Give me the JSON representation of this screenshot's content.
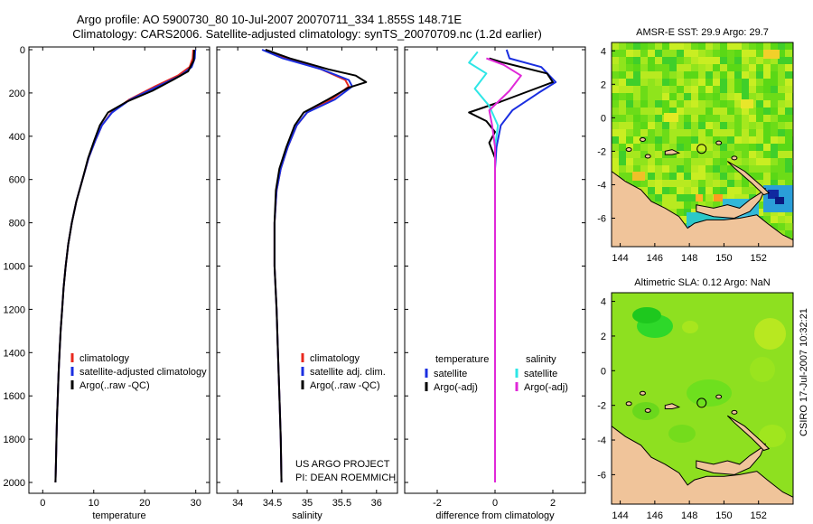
{
  "header": {
    "line1": "Argo profile: AO 5900730_80 10-Jul-2007 20070711_334 1.855S 148.71E",
    "line2": "Climatology: CARS2006. Satellite-adjusted climatology: synTS_20070709.nc (1.2d earlier)"
  },
  "side_stamp": "CSIRO 17-Jul-2007 10:32:21",
  "colors": {
    "clim": "#e8281e",
    "sat": "#1a2ee0",
    "argo": "#000000",
    "sat_diff": "#2ee6e6",
    "argo_diff": "#e028d8"
  },
  "chart_data": [
    {
      "type": "line",
      "xlabel": "temperature",
      "ylabel": "",
      "xlim": [
        -2,
        32
      ],
      "ylim": [
        2000,
        0
      ],
      "x_ticks": [
        "0",
        "10",
        "20",
        "30"
      ],
      "y_ticks": [
        "0",
        "200",
        "400",
        "600",
        "800",
        "1000",
        "1200",
        "1400",
        "1600",
        "1800",
        "2000"
      ],
      "legend": [
        "climatology",
        "satellite-adjusted climatology",
        "Argo(..raw -QC)"
      ],
      "series": [
        {
          "name": "climatology",
          "color": "#e8281e",
          "points": [
            [
              29.5,
              0
            ],
            [
              29.4,
              40
            ],
            [
              28.8,
              80
            ],
            [
              26.5,
              120
            ],
            [
              22,
              170
            ],
            [
              17,
              230
            ],
            [
              13.5,
              290
            ],
            [
              11.6,
              350
            ],
            [
              10.3,
              420
            ],
            [
              9,
              500
            ],
            [
              7.8,
              600
            ],
            [
              6.6,
              700
            ],
            [
              5.7,
              800
            ],
            [
              5,
              900
            ],
            [
              4.5,
              1000
            ],
            [
              4.1,
              1100
            ],
            [
              3.8,
              1200
            ],
            [
              3.5,
              1300
            ],
            [
              3.3,
              1400
            ],
            [
              3.1,
              1500
            ],
            [
              2.95,
              1600
            ],
            [
              2.8,
              1700
            ],
            [
              2.7,
              1800
            ],
            [
              2.6,
              1900
            ],
            [
              2.5,
              2000
            ]
          ]
        },
        {
          "name": "satellite-adjusted climatology",
          "color": "#1a2ee0",
          "points": [
            [
              29.9,
              0
            ],
            [
              29.8,
              40
            ],
            [
              29.2,
              80
            ],
            [
              27,
              120
            ],
            [
              22.5,
              170
            ],
            [
              17.2,
              230
            ],
            [
              13.6,
              290
            ],
            [
              11.6,
              350
            ],
            [
              10.3,
              420
            ],
            [
              9,
              500
            ],
            [
              7.8,
              600
            ],
            [
              6.6,
              700
            ],
            [
              5.7,
              800
            ],
            [
              5,
              900
            ],
            [
              4.5,
              1000
            ],
            [
              4.1,
              1100
            ],
            [
              3.8,
              1200
            ],
            [
              3.5,
              1300
            ],
            [
              3.3,
              1400
            ],
            [
              3.1,
              1500
            ],
            [
              2.95,
              1600
            ],
            [
              2.8,
              1700
            ],
            [
              2.7,
              1800
            ],
            [
              2.6,
              1900
            ],
            [
              2.5,
              2000
            ]
          ]
        },
        {
          "name": "Argo(..raw -QC)",
          "color": "#000000",
          "points": [
            [
              29.7,
              0
            ],
            [
              29.6,
              50
            ],
            [
              28.5,
              100
            ],
            [
              25.5,
              140
            ],
            [
              21.5,
              190
            ],
            [
              16.5,
              240
            ],
            [
              12.8,
              290
            ],
            [
              11.2,
              350
            ],
            [
              10.1,
              420
            ],
            [
              8.9,
              500
            ],
            [
              7.8,
              600
            ],
            [
              6.6,
              700
            ],
            [
              5.7,
              800
            ],
            [
              5,
              900
            ],
            [
              4.5,
              1000
            ],
            [
              4.1,
              1100
            ],
            [
              3.8,
              1200
            ],
            [
              3.5,
              1300
            ],
            [
              3.3,
              1400
            ],
            [
              3.1,
              1500
            ],
            [
              2.95,
              1600
            ],
            [
              2.8,
              1700
            ],
            [
              2.7,
              1800
            ],
            [
              2.6,
              1900
            ],
            [
              2.5,
              2000
            ]
          ]
        }
      ]
    },
    {
      "type": "line",
      "xlabel": "salinity",
      "xlim": [
        33.75,
        36.25
      ],
      "ylim": [
        2000,
        0
      ],
      "x_ticks": [
        "34",
        "34.5",
        "35",
        "35.5",
        "36"
      ],
      "legend": [
        "climatology",
        "satellite adj. clim.",
        "Argo(..raw -QC)"
      ],
      "annotation": [
        "US ARGO PROJECT",
        "PI: DEAN ROEMMICH"
      ],
      "series": [
        {
          "name": "climatology",
          "color": "#e8281e",
          "points": [
            [
              34.4,
              0
            ],
            [
              34.7,
              40
            ],
            [
              35.2,
              90
            ],
            [
              35.55,
              140
            ],
            [
              35.6,
              170
            ],
            [
              35.35,
              230
            ],
            [
              35.0,
              290
            ],
            [
              34.85,
              350
            ],
            [
              34.72,
              450
            ],
            [
              34.62,
              550
            ],
            [
              34.56,
              650
            ],
            [
              34.53,
              800
            ],
            [
              34.53,
              1000
            ],
            [
              34.56,
              1200
            ],
            [
              34.58,
              1400
            ],
            [
              34.6,
              1600
            ],
            [
              34.62,
              1800
            ],
            [
              34.63,
              2000
            ]
          ]
        },
        {
          "name": "satellite adj. clim.",
          "color": "#1a2ee0",
          "points": [
            [
              34.35,
              0
            ],
            [
              34.65,
              40
            ],
            [
              35.2,
              90
            ],
            [
              35.6,
              140
            ],
            [
              35.65,
              170
            ],
            [
              35.4,
              230
            ],
            [
              35.0,
              290
            ],
            [
              34.85,
              350
            ],
            [
              34.72,
              450
            ],
            [
              34.62,
              550
            ],
            [
              34.56,
              650
            ],
            [
              34.53,
              800
            ],
            [
              34.53,
              1000
            ],
            [
              34.56,
              1200
            ],
            [
              34.58,
              1400
            ],
            [
              34.6,
              1600
            ],
            [
              34.62,
              1800
            ],
            [
              34.63,
              2000
            ]
          ]
        },
        {
          "name": "Argo(..raw -QC)",
          "color": "#000000",
          "points": [
            [
              34.4,
              0
            ],
            [
              34.75,
              40
            ],
            [
              35.3,
              90
            ],
            [
              35.7,
              120
            ],
            [
              35.85,
              150
            ],
            [
              35.6,
              175
            ],
            [
              35.3,
              230
            ],
            [
              34.95,
              290
            ],
            [
              34.82,
              350
            ],
            [
              34.7,
              450
            ],
            [
              34.6,
              550
            ],
            [
              34.55,
              650
            ],
            [
              34.53,
              800
            ],
            [
              34.53,
              1000
            ],
            [
              34.56,
              1200
            ],
            [
              34.58,
              1400
            ],
            [
              34.6,
              1600
            ],
            [
              34.62,
              1800
            ],
            [
              34.63,
              2000
            ]
          ]
        }
      ]
    },
    {
      "type": "line",
      "xlabel": "difference from climatology",
      "xlim": [
        -3,
        3
      ],
      "ylim": [
        2000,
        0
      ],
      "x_ticks": [
        "-2",
        "0",
        "2"
      ],
      "legend_groups": [
        {
          "title": "temperature",
          "entries": [
            "satellite",
            "Argo(-adj)"
          ]
        },
        {
          "title": "salinity",
          "entries": [
            "satellite",
            "Argo(-adj)"
          ]
        }
      ],
      "series": [
        {
          "name": "satellite",
          "group": "temperature",
          "color": "#1a2ee0",
          "points": [
            [
              0.4,
              0
            ],
            [
              0.5,
              40
            ],
            [
              1.6,
              80
            ],
            [
              2.1,
              150
            ],
            [
              1.5,
              200
            ],
            [
              0.6,
              280
            ],
            [
              0.2,
              350
            ],
            [
              0.05,
              450
            ],
            [
              0,
              550
            ],
            [
              0,
              700
            ],
            [
              0,
              2000
            ]
          ]
        },
        {
          "name": "Argo(-adj)",
          "group": "temperature",
          "color": "#000000",
          "points": [
            [
              -0.2,
              40
            ],
            [
              0.3,
              60
            ],
            [
              1.8,
              110
            ],
            [
              2.0,
              150
            ],
            [
              1.2,
              190
            ],
            [
              0.2,
              240
            ],
            [
              -0.9,
              290
            ],
            [
              -0.3,
              330
            ],
            [
              0.0,
              380
            ],
            [
              -0.2,
              430
            ],
            [
              0.0,
              500
            ],
            [
              0,
              2000
            ]
          ]
        },
        {
          "name": "satellite",
          "group": "salinity",
          "color": "#2ee6e6",
          "points": [
            [
              -0.6,
              10
            ],
            [
              -0.9,
              60
            ],
            [
              -0.3,
              110
            ],
            [
              -0.7,
              180
            ],
            [
              -0.2,
              260
            ],
            [
              0.1,
              350
            ],
            [
              0.0,
              450
            ],
            [
              0,
              600
            ],
            [
              0,
              2000
            ]
          ]
        },
        {
          "name": "Argo(-adj)",
          "group": "salinity",
          "color": "#e028d8",
          "points": [
            [
              -0.3,
              40
            ],
            [
              0.3,
              70
            ],
            [
              0.9,
              120
            ],
            [
              0.5,
              190
            ],
            [
              -0.2,
              280
            ],
            [
              -0.1,
              350
            ],
            [
              0.0,
              450
            ],
            [
              0,
              600
            ],
            [
              0,
              2000
            ]
          ]
        }
      ]
    },
    {
      "type": "heatmap",
      "title": "AMSR-E SST: 29.9 Argo: 29.7",
      "xlim": [
        143.5,
        154
      ],
      "ylim": [
        -7.7,
        4.5
      ],
      "x_ticks": [
        "144",
        "146",
        "148",
        "150",
        "152"
      ],
      "y_ticks": [
        "4",
        "2",
        "0",
        "-2",
        "-4",
        "-6"
      ],
      "float_position": [
        148.71,
        -1.855
      ]
    },
    {
      "type": "heatmap",
      "title": "Altimetric SLA: 0.12 Argo: NaN",
      "xlim": [
        143.5,
        154
      ],
      "ylim": [
        -7.7,
        4.5
      ],
      "x_ticks": [
        "144",
        "146",
        "148",
        "150",
        "152"
      ],
      "y_ticks": [
        "4",
        "2",
        "0",
        "-2",
        "-4",
        "-6"
      ],
      "float_position": [
        148.71,
        -1.855
      ]
    }
  ]
}
